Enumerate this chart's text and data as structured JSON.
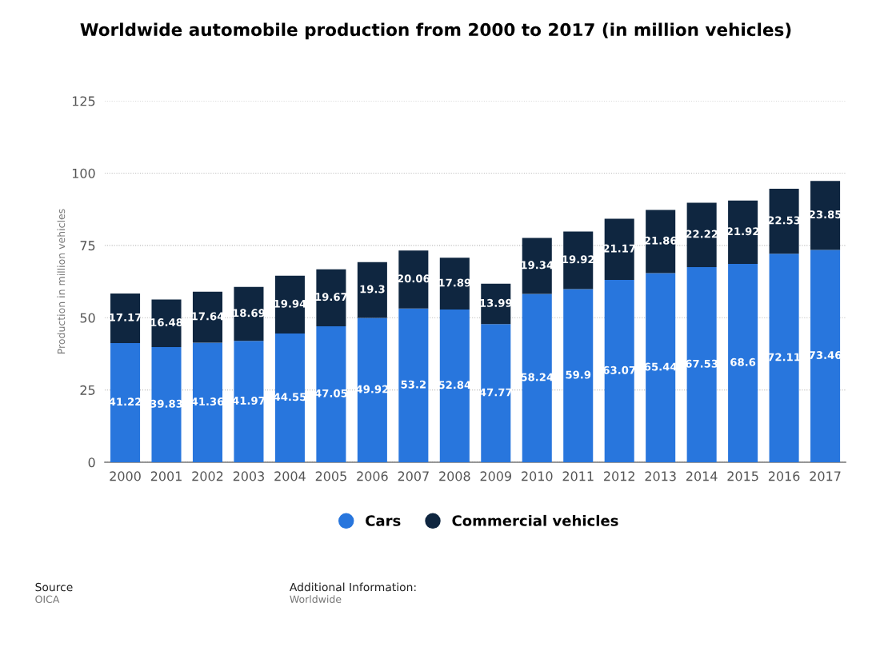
{
  "chart_data": {
    "type": "bar",
    "title": "Worldwide automobile production from 2000 to 2017 (in million vehicles)",
    "ylabel": "Production in million vehicles",
    "categories": [
      "2000",
      "2001",
      "2002",
      "2003",
      "2004",
      "2005",
      "2006",
      "2007",
      "2008",
      "2009",
      "2010",
      "2011",
      "2012",
      "2013",
      "2014",
      "2015",
      "2016",
      "2017"
    ],
    "series": [
      {
        "name": "Cars",
        "color": "#2876dd",
        "values": [
          41.22,
          39.83,
          41.36,
          41.97,
          44.55,
          47.05,
          49.92,
          53.2,
          52.84,
          47.77,
          58.24,
          59.9,
          63.07,
          65.44,
          67.53,
          68.6,
          72.11,
          73.46
        ]
      },
      {
        "name": "Commercial vehicles",
        "color": "#0f2640",
        "values": [
          17.17,
          16.48,
          17.64,
          18.69,
          19.94,
          19.67,
          19.3,
          20.06,
          17.89,
          13.99,
          19.34,
          19.92,
          21.17,
          21.86,
          22.22,
          21.92,
          22.53,
          23.85
        ]
      }
    ],
    "stacked": true,
    "data_labels": true,
    "ylim": [
      0,
      125
    ],
    "yticks": [
      0,
      25,
      50,
      75,
      100,
      125
    ],
    "grid": "y",
    "legend": "bottom",
    "annotations": [
      "Source",
      "OICA",
      "Additional Information:",
      "Worldwide"
    ]
  }
}
